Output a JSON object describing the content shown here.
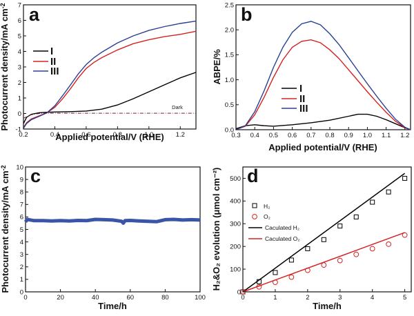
{
  "chart_data": [
    {
      "panel": "a",
      "type": "line",
      "xlabel": "Applied potential/V (RHE)",
      "ylabel": "Photocurrent density/mA cm",
      "ylabel_sup": "-2",
      "xlim": [
        0.2,
        1.3
      ],
      "ylim": [
        -1,
        7
      ],
      "xticks": [
        "0.2",
        "0.4",
        "0.6",
        "0.8",
        "1.0",
        "1.2"
      ],
      "yticks": [
        "-1",
        "0",
        "1",
        "2",
        "3",
        "4",
        "5",
        "6",
        "7"
      ],
      "legend": [
        "I",
        "II",
        "III"
      ],
      "legend_position": "upper-left",
      "annotation": "Dark",
      "colors": {
        "I": "#000000",
        "II": "#d62020",
        "III": "#2a3f94",
        "Dark": "#7a1f3a"
      },
      "series": [
        {
          "name": "I",
          "x": [
            0.2,
            0.22,
            0.25,
            0.3,
            0.35,
            0.4,
            0.5,
            0.6,
            0.7,
            0.8,
            0.9,
            1.0,
            1.1,
            1.2,
            1.3
          ],
          "y": [
            -0.65,
            -0.25,
            -0.05,
            0.05,
            0.08,
            0.1,
            0.12,
            0.16,
            0.28,
            0.55,
            0.95,
            1.4,
            1.85,
            2.3,
            2.65
          ]
        },
        {
          "name": "II",
          "x": [
            0.2,
            0.22,
            0.25,
            0.3,
            0.35,
            0.4,
            0.45,
            0.5,
            0.55,
            0.6,
            0.65,
            0.7,
            0.8,
            0.9,
            1.0,
            1.1,
            1.2,
            1.3
          ],
          "y": [
            -0.9,
            -0.6,
            -0.35,
            -0.15,
            0.05,
            0.4,
            0.95,
            1.6,
            2.3,
            2.9,
            3.3,
            3.6,
            4.1,
            4.5,
            4.75,
            4.95,
            5.1,
            5.3
          ]
        },
        {
          "name": "III",
          "x": [
            0.2,
            0.22,
            0.25,
            0.3,
            0.35,
            0.4,
            0.45,
            0.5,
            0.55,
            0.6,
            0.65,
            0.7,
            0.8,
            0.9,
            1.0,
            1.1,
            1.2,
            1.3
          ],
          "y": [
            -0.95,
            -0.65,
            -0.4,
            -0.18,
            0.05,
            0.5,
            1.15,
            1.85,
            2.55,
            3.15,
            3.6,
            3.95,
            4.55,
            5.0,
            5.35,
            5.6,
            5.8,
            5.95
          ]
        },
        {
          "name": "Dark",
          "x": [
            0.2,
            0.25,
            0.3,
            0.35,
            0.4,
            0.6,
            0.8,
            1.0,
            1.2,
            1.3
          ],
          "y": [
            -0.3,
            -0.08,
            0.0,
            0.02,
            0.02,
            0.02,
            0.02,
            0.02,
            0.02,
            0.02
          ]
        }
      ]
    },
    {
      "panel": "b",
      "type": "line",
      "xlabel": "Applied potential/V (RHE)",
      "ylabel": "ABPE/%",
      "xlim": [
        0.3,
        1.23
      ],
      "ylim": [
        0,
        2.5
      ],
      "xticks": [
        "0.3",
        "0.4",
        "0.5",
        "0.6",
        "0.7",
        "0.8",
        "0.9",
        "1.0",
        "1.1",
        "1.2"
      ],
      "yticks": [
        "0.0",
        "0.5",
        "1.0",
        "1.5",
        "2.0",
        "2.5"
      ],
      "legend": [
        "I",
        "II",
        "III"
      ],
      "legend_position": "lower-left",
      "colors": {
        "I": "#000000",
        "II": "#d62020",
        "III": "#2a3f94"
      },
      "series": [
        {
          "name": "I",
          "x": [
            0.3,
            0.35,
            0.4,
            0.45,
            0.5,
            0.6,
            0.7,
            0.8,
            0.9,
            0.95,
            1.0,
            1.05,
            1.1,
            1.15,
            1.2,
            1.23
          ],
          "y": [
            0.02,
            0.08,
            0.1,
            0.08,
            0.07,
            0.1,
            0.14,
            0.19,
            0.27,
            0.31,
            0.31,
            0.27,
            0.2,
            0.12,
            0.04,
            0.0
          ]
        },
        {
          "name": "II",
          "x": [
            0.3,
            0.35,
            0.4,
            0.45,
            0.5,
            0.55,
            0.6,
            0.65,
            0.7,
            0.75,
            0.8,
            0.85,
            0.9,
            0.95,
            1.0,
            1.05,
            1.1,
            1.15,
            1.2,
            1.23
          ],
          "y": [
            0.0,
            0.07,
            0.3,
            0.65,
            1.05,
            1.4,
            1.65,
            1.77,
            1.8,
            1.74,
            1.6,
            1.42,
            1.2,
            0.98,
            0.76,
            0.55,
            0.35,
            0.17,
            0.04,
            0.0
          ]
        },
        {
          "name": "III",
          "x": [
            0.3,
            0.35,
            0.4,
            0.45,
            0.5,
            0.55,
            0.6,
            0.65,
            0.7,
            0.75,
            0.8,
            0.85,
            0.9,
            0.95,
            1.0,
            1.05,
            1.1,
            1.15,
            1.2,
            1.23
          ],
          "y": [
            0.0,
            0.08,
            0.36,
            0.78,
            1.25,
            1.65,
            1.95,
            2.12,
            2.17,
            2.1,
            1.92,
            1.7,
            1.44,
            1.18,
            0.92,
            0.67,
            0.43,
            0.21,
            0.05,
            0.0
          ]
        }
      ]
    },
    {
      "panel": "c",
      "type": "line",
      "xlabel": "Time/h",
      "ylabel": "Photocurrent density/mA cm",
      "ylabel_sup": "-2",
      "xlim": [
        0,
        100
      ],
      "ylim": [
        0,
        10
      ],
      "xticks": [
        "0",
        "20",
        "40",
        "60",
        "80",
        "100"
      ],
      "yticks": [
        "0",
        "1",
        "2",
        "3",
        "4",
        "5",
        "6",
        "7",
        "8",
        "9",
        "10"
      ],
      "colors": {
        "stability": "#3a55a8"
      },
      "series": [
        {
          "x": [
            0,
            1,
            3,
            5,
            10,
            15,
            20,
            25,
            30,
            35,
            40,
            45,
            50,
            55,
            56,
            57,
            60,
            65,
            70,
            75,
            80,
            85,
            90,
            95,
            100
          ],
          "y": [
            5.6,
            5.8,
            5.75,
            5.7,
            5.7,
            5.68,
            5.7,
            5.68,
            5.72,
            5.7,
            5.8,
            5.78,
            5.75,
            5.65,
            5.5,
            5.7,
            5.72,
            5.68,
            5.65,
            5.62,
            5.78,
            5.8,
            5.75,
            5.78,
            5.75
          ]
        }
      ]
    },
    {
      "panel": "d",
      "type": "scatter",
      "xlabel": "Time/h",
      "ylabel": "H₂&O₂ evolution (μmol cm⁻²)",
      "xlim": [
        0,
        5.2
      ],
      "ylim": [
        0,
        550
      ],
      "xticks": [
        "0",
        "1",
        "2",
        "3",
        "4",
        "5"
      ],
      "yticks": [
        "0",
        "100",
        "200",
        "300",
        "400",
        "500"
      ],
      "legend": [
        "H₂",
        "O₂",
        "Caculated H₂",
        "Caculated O₂"
      ],
      "legend_position": "upper-left",
      "colors": {
        "H2": "#000000",
        "O2": "#d62020",
        "calcH2": "#000000",
        "calcO2": "#d62020"
      },
      "series": [
        {
          "name": "H₂",
          "marker": "square",
          "x": [
            0,
            0.5,
            1,
            1.5,
            2,
            2.5,
            3,
            3.5,
            4,
            4.5,
            5
          ],
          "y": [
            0,
            45,
            85,
            140,
            190,
            230,
            290,
            330,
            395,
            440,
            500
          ]
        },
        {
          "name": "O₂",
          "marker": "circle",
          "x": [
            0,
            0.5,
            1,
            1.5,
            2,
            2.5,
            3,
            3.5,
            4,
            4.5,
            5
          ],
          "y": [
            0,
            22,
            42,
            65,
            95,
            118,
            138,
            165,
            190,
            210,
            250
          ]
        },
        {
          "name": "Caculated H₂",
          "line": true,
          "x": [
            0,
            5
          ],
          "y": [
            0,
            522
          ]
        },
        {
          "name": "Caculated O₂",
          "line": true,
          "x": [
            0,
            5
          ],
          "y": [
            0,
            261
          ]
        }
      ]
    }
  ]
}
